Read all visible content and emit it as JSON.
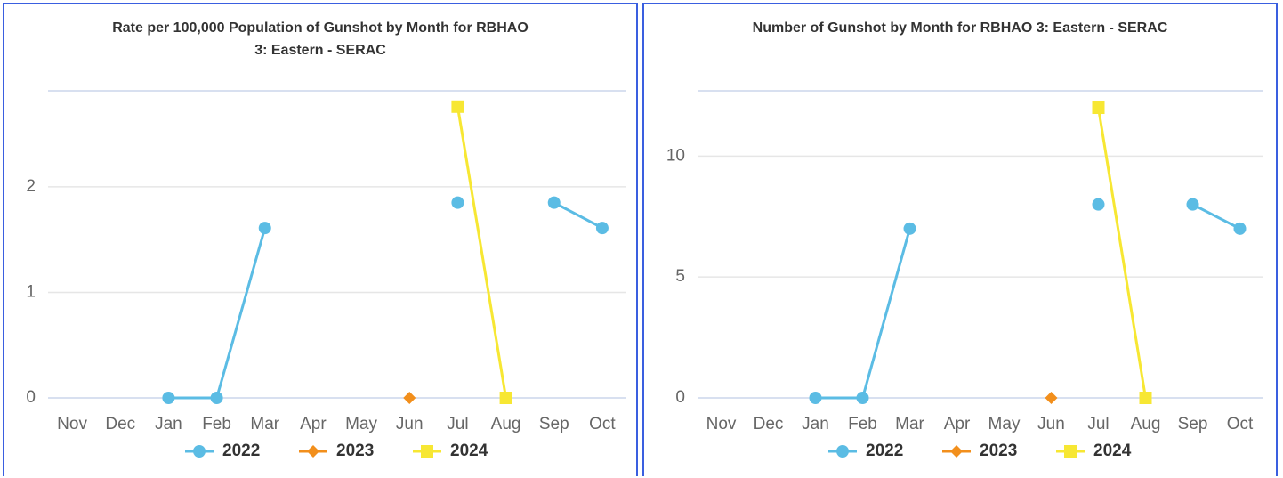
{
  "chart_data": [
    {
      "type": "line",
      "title": "Rate per 100,000 Population of Gunshot by Month for RBHAO 3: Eastern - SERAC",
      "categories": [
        "Nov",
        "Dec",
        "Jan",
        "Feb",
        "Mar",
        "Apr",
        "May",
        "Jun",
        "Jul",
        "Aug",
        "Sep",
        "Oct"
      ],
      "series": [
        {
          "name": "2022",
          "color": "#5bbce4",
          "marker": "circle",
          "values": [
            null,
            null,
            0,
            0,
            1.61,
            null,
            null,
            null,
            1.85,
            null,
            1.85,
            1.61
          ]
        },
        {
          "name": "2023",
          "color": "#f28f1c",
          "marker": "diamond",
          "values": [
            null,
            null,
            null,
            null,
            null,
            null,
            null,
            0,
            null,
            null,
            null,
            null
          ]
        },
        {
          "name": "2024",
          "color": "#f7e733",
          "marker": "square",
          "values": [
            null,
            null,
            null,
            null,
            null,
            null,
            null,
            null,
            2.76,
            0,
            null,
            null
          ]
        }
      ],
      "ylim": [
        0,
        2.91
      ],
      "yticks": [
        0,
        1,
        2
      ],
      "grid": true
    },
    {
      "type": "line",
      "title": "Number of Gunshot by Month for RBHAO 3: Eastern - SERAC",
      "categories": [
        "Nov",
        "Dec",
        "Jan",
        "Feb",
        "Mar",
        "Apr",
        "May",
        "Jun",
        "Jul",
        "Aug",
        "Sep",
        "Oct"
      ],
      "series": [
        {
          "name": "2022",
          "color": "#5bbce4",
          "marker": "circle",
          "values": [
            null,
            null,
            0,
            0,
            7,
            null,
            null,
            null,
            8,
            null,
            8,
            7
          ]
        },
        {
          "name": "2023",
          "color": "#f28f1c",
          "marker": "diamond",
          "values": [
            null,
            null,
            null,
            null,
            null,
            null,
            null,
            0,
            null,
            null,
            null,
            null
          ]
        },
        {
          "name": "2024",
          "color": "#f7e733",
          "marker": "square",
          "values": [
            null,
            null,
            null,
            null,
            null,
            null,
            null,
            null,
            12,
            0,
            null,
            null
          ]
        }
      ],
      "ylim": [
        0,
        12.7
      ],
      "yticks": [
        0,
        5,
        10
      ],
      "grid": true
    }
  ]
}
